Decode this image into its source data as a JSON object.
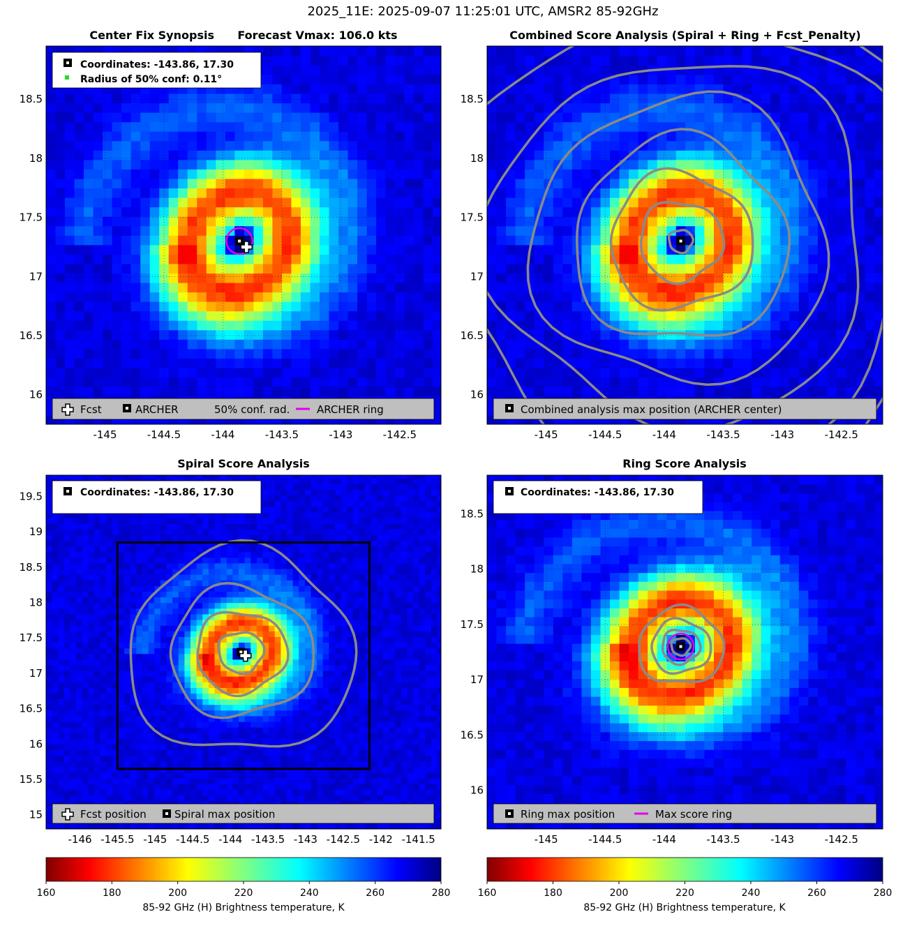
{
  "figure_title": "2025_11E: 2025-09-07 11:25:01 UTC, AMSR2 85-92GHz",
  "colors": {
    "ring": "#e600e6",
    "contour": "#8a8a8a",
    "legend_bg": "#bfbfbf",
    "conf_dot": "#22dd22"
  },
  "chart_data": [
    {
      "id": "center-fix",
      "type": "heatmap",
      "title": "Center Fix Synopsis      Forecast Vmax: 106.0 kts",
      "xlim": [
        -145.5,
        -142.15
      ],
      "ylim": [
        15.75,
        18.95
      ],
      "xticks": [
        -145,
        -144.5,
        -144,
        -143.5,
        -143,
        -142.5
      ],
      "yticks": [
        16,
        16.5,
        17,
        17.5,
        18,
        18.5
      ],
      "grid": true,
      "storm": {
        "lon": -143.86,
        "lat": 17.3,
        "scale": 1.0
      },
      "archer_center": {
        "lon": -143.86,
        "lat": 17.3
      },
      "fcst_position": {
        "lon": -143.8,
        "lat": 17.25
      },
      "conf_radius_deg": 0.11,
      "ring_radius_deg": 0.11,
      "info_lines": [
        "Coordinates: -143.86, 17.30",
        "Radius of 50% conf: 0.11°"
      ],
      "legend_items": [
        "Fcst",
        "ARCHER",
        "50% conf. rad.",
        "ARCHER ring"
      ],
      "legend_placement": "bottom"
    },
    {
      "id": "combined",
      "type": "heatmap",
      "title": "Combined Score Analysis (Spiral + Ring + Fcst_Penalty)",
      "xlim": [
        -145.5,
        -142.15
      ],
      "ylim": [
        15.75,
        18.95
      ],
      "xticks": [
        -145,
        -144.5,
        -144,
        -143.5,
        -143,
        -142.5
      ],
      "yticks": [
        16,
        16.5,
        17,
        17.5,
        18,
        18.5
      ],
      "grid": true,
      "storm": {
        "lon": -143.86,
        "lat": 17.3,
        "scale": 1.0
      },
      "archer_center": {
        "lon": -143.86,
        "lat": 17.3
      },
      "contour_radii_deg": [
        0.1,
        0.35,
        0.6,
        0.9,
        1.25,
        1.6,
        2.0,
        2.4
      ],
      "legend_items": [
        "Combined analysis max position (ARCHER center)"
      ],
      "legend_placement": "bottom"
    },
    {
      "id": "spiral",
      "type": "heatmap",
      "title": "Spiral Score Analysis",
      "xlim": [
        -146.45,
        -141.2
      ],
      "ylim": [
        14.8,
        19.8
      ],
      "xticks": [
        -146,
        -145.5,
        -145,
        -144.5,
        -144,
        -143.5,
        -143,
        -142.5,
        -142,
        -141.5
      ],
      "yticks": [
        15,
        15.5,
        16,
        16.5,
        17,
        17.5,
        18,
        18.5,
        19,
        19.5
      ],
      "grid": false,
      "storm": {
        "lon": -143.86,
        "lat": 17.3,
        "scale": 1.0
      },
      "archer_center": {
        "lon": -143.86,
        "lat": 17.3
      },
      "fcst_position": {
        "lon": -143.8,
        "lat": 17.25
      },
      "contour_radii_deg": [
        0.3,
        0.6,
        0.95,
        1.5
      ],
      "search_box": {
        "lon_min": -145.5,
        "lon_max": -142.15,
        "lat_min": 15.65,
        "lat_max": 18.85
      },
      "info_lines": [
        "Coordinates: -143.86, 17.30"
      ],
      "legend_items": [
        "Fcst position",
        "Spiral max position"
      ],
      "legend_placement": "bottom"
    },
    {
      "id": "ring",
      "type": "heatmap",
      "title": "Ring Score Analysis",
      "xlim": [
        -145.5,
        -142.15
      ],
      "ylim": [
        15.65,
        18.85
      ],
      "xticks": [
        -145,
        -144.5,
        -144,
        -143.5,
        -143,
        -142.5
      ],
      "yticks": [
        16,
        16.5,
        17,
        17.5,
        18,
        18.5
      ],
      "grid": true,
      "storm": {
        "lon": -143.86,
        "lat": 17.3,
        "scale": 1.0
      },
      "archer_center": {
        "lon": -143.86,
        "lat": 17.3
      },
      "ring_radius_deg": 0.11,
      "contour_radii_deg": [
        0.08,
        0.16,
        0.25,
        0.36
      ],
      "info_lines": [
        "Coordinates: -143.86, 17.30"
      ],
      "legend_items": [
        "Ring max position",
        "Max score ring"
      ],
      "legend_placement": "bottom"
    }
  ],
  "colorbars": [
    {
      "id": "cb-left",
      "colormap": "jet_r",
      "range": [
        160,
        280
      ],
      "ticks": [
        160,
        180,
        200,
        220,
        240,
        260,
        280
      ],
      "label": "85-92 GHz (H) Brightness temperature, K"
    },
    {
      "id": "cb-right",
      "colormap": "jet_r",
      "range": [
        160,
        280
      ],
      "ticks": [
        160,
        180,
        200,
        220,
        240,
        260,
        280
      ],
      "label": "85-92 GHz (H) Brightness temperature, K"
    }
  ]
}
